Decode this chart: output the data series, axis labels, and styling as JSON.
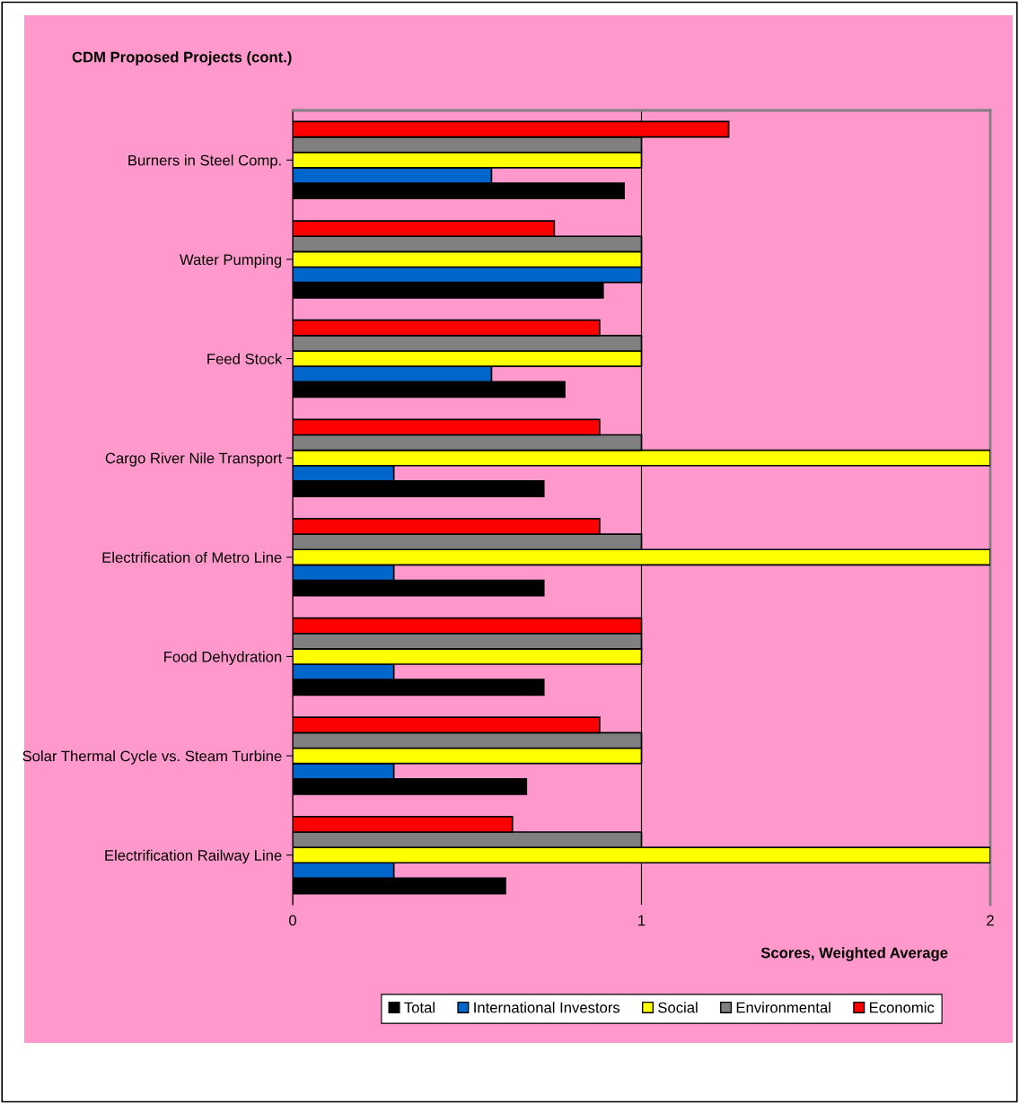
{
  "chart_data": {
    "type": "bar",
    "orientation": "horizontal",
    "title": "CDM Proposed Projects (cont.)",
    "xlabel": "Scores, Weighted Average",
    "categories": [
      "Burners in Steel Comp.",
      "Water Pumping",
      "Feed Stock",
      "Cargo River Nile Transport",
      "Electrification of Metro Line",
      "Food Dehydration",
      "Solar Thermal Cycle vs. Steam Turbine",
      "Electrification Railway Line"
    ],
    "series": [
      {
        "name": "Total",
        "color": "#000000",
        "values": [
          0.95,
          0.89,
          0.78,
          0.72,
          0.72,
          0.72,
          0.67,
          0.61
        ]
      },
      {
        "name": "International Investors",
        "color": "#0066cc",
        "values": [
          0.57,
          1,
          0.57,
          0.29,
          0.29,
          0.29,
          0.29,
          0.29
        ]
      },
      {
        "name": "Social",
        "color": "#ffff00",
        "values": [
          1,
          1,
          1,
          2,
          2,
          1,
          1,
          2
        ]
      },
      {
        "name": "Environmental",
        "color": "#808080",
        "values": [
          1,
          1,
          1,
          1,
          1,
          1,
          1,
          1
        ]
      },
      {
        "name": "Economic",
        "color": "#ff0000",
        "values": [
          1.25,
          0.75,
          0.88,
          0.88,
          0.88,
          1,
          0.88,
          0.63
        ]
      }
    ],
    "xlim": [
      0,
      2
    ],
    "xticks": [
      0,
      1,
      2
    ],
    "grid": "x",
    "legend": "bottom"
  }
}
